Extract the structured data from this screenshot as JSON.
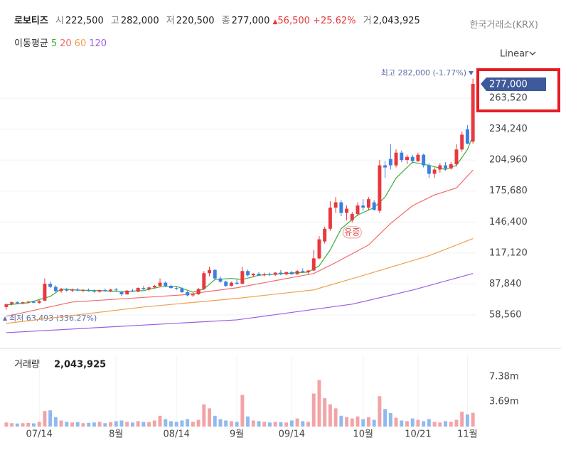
{
  "header": {
    "name": "로보티즈",
    "quotes": [
      {
        "label": "시",
        "value": "222,500"
      },
      {
        "label": "고",
        "value": "282,000"
      },
      {
        "label": "저",
        "value": "220,500"
      },
      {
        "label": "종",
        "value": "277,000"
      },
      {
        "label": "거",
        "value": "2,043,925"
      }
    ],
    "change": "56,500",
    "change_pct": "+25.62%",
    "exchange": "한국거래소(KRX)",
    "ma_label": "이동평균",
    "scale": "Linear"
  },
  "chart_data": {
    "type": "candlestick",
    "grid": true,
    "candles": [
      [
        66000,
        69500,
        63493,
        68500
      ],
      [
        69000,
        71000,
        67500,
        70500
      ],
      [
        70500,
        71500,
        69000,
        69500
      ],
      [
        69500,
        71000,
        68500,
        70500
      ],
      [
        70500,
        72000,
        69500,
        71000
      ],
      [
        71000,
        71500,
        69500,
        70000
      ],
      [
        70000,
        72500,
        69000,
        71500
      ],
      [
        72000,
        93000,
        71500,
        88000
      ],
      [
        88000,
        90000,
        84000,
        85000
      ],
      [
        85000,
        86500,
        80000,
        81000
      ],
      [
        81000,
        84000,
        79500,
        83000
      ],
      [
        83000,
        84000,
        80500,
        81500
      ],
      [
        81500,
        83500,
        80000,
        82500
      ],
      [
        82500,
        84000,
        81000,
        81500
      ],
      [
        81500,
        83000,
        80000,
        82000
      ],
      [
        82000,
        83500,
        80500,
        81000
      ],
      [
        81000,
        82500,
        79500,
        80500
      ],
      [
        80500,
        82500,
        79500,
        82000
      ],
      [
        82000,
        83500,
        80500,
        81000
      ],
      [
        81000,
        83000,
        80000,
        82500
      ],
      [
        82500,
        84000,
        81000,
        82000
      ],
      [
        80000,
        81000,
        76500,
        78000
      ],
      [
        78000,
        82000,
        77500,
        81500
      ],
      [
        81500,
        83000,
        80000,
        80500
      ],
      [
        80500,
        84500,
        80000,
        84000
      ],
      [
        84000,
        86000,
        82000,
        83000
      ],
      [
        83000,
        85000,
        81500,
        84500
      ],
      [
        84500,
        87000,
        83500,
        86000
      ],
      [
        86000,
        93000,
        85000,
        89000
      ],
      [
        89000,
        90500,
        85000,
        86000
      ],
      [
        86000,
        87000,
        83000,
        84000
      ],
      [
        84000,
        85500,
        82000,
        83500
      ],
      [
        83500,
        84500,
        79500,
        80000
      ],
      [
        80000,
        81000,
        76000,
        77000
      ],
      [
        77000,
        79000,
        75500,
        78000
      ],
      [
        78000,
        84000,
        77500,
        83000
      ],
      [
        83000,
        100000,
        82000,
        98000
      ],
      [
        98000,
        104000,
        95000,
        101000
      ],
      [
        101000,
        102000,
        92000,
        93000
      ],
      [
        93000,
        95000,
        89000,
        90000
      ],
      [
        90000,
        91000,
        85000,
        86000
      ],
      [
        86000,
        90000,
        85500,
        89000
      ],
      [
        89000,
        92000,
        87000,
        88000
      ],
      [
        88000,
        104000,
        87500,
        100000
      ],
      [
        100000,
        101500,
        95000,
        96000
      ],
      [
        96000,
        98000,
        94000,
        97500
      ],
      [
        97500,
        99000,
        95500,
        96000
      ],
      [
        96000,
        98500,
        95000,
        97000
      ],
      [
        97000,
        98500,
        95500,
        96500
      ],
      [
        96500,
        99000,
        95500,
        98500
      ],
      [
        98500,
        101000,
        96000,
        97000
      ],
      [
        97000,
        99500,
        96000,
        99000
      ],
      [
        99000,
        100000,
        96500,
        97000
      ],
      [
        97000,
        101000,
        96500,
        100000
      ],
      [
        100000,
        102500,
        98000,
        99000
      ],
      [
        99000,
        101000,
        97000,
        100500
      ],
      [
        100500,
        120000,
        100000,
        112000
      ],
      [
        112000,
        133000,
        111000,
        130000
      ],
      [
        128000,
        142000,
        126000,
        140000
      ],
      [
        140000,
        166000,
        138000,
        160000
      ],
      [
        160000,
        170000,
        155000,
        165000
      ],
      [
        165000,
        167000,
        152000,
        155000
      ],
      [
        155000,
        162000,
        148000,
        159000
      ],
      [
        148000,
        156000,
        146000,
        154000
      ],
      [
        154000,
        165000,
        152000,
        162000
      ],
      [
        162000,
        168000,
        157000,
        160000
      ],
      [
        160000,
        170000,
        158000,
        168000
      ],
      [
        165000,
        167000,
        157000,
        158000
      ],
      [
        157000,
        205000,
        155000,
        200000
      ],
      [
        200000,
        204000,
        188000,
        198000
      ],
      [
        206000,
        220000,
        196000,
        200000
      ],
      [
        200000,
        215000,
        198000,
        212000
      ],
      [
        212000,
        214000,
        203000,
        205000
      ],
      [
        205000,
        210000,
        201000,
        208000
      ],
      [
        208000,
        210000,
        202000,
        204000
      ],
      [
        204000,
        212000,
        203000,
        210000
      ],
      [
        210000,
        211000,
        198000,
        200000
      ],
      [
        200000,
        202000,
        188000,
        192000
      ],
      [
        192000,
        198000,
        188000,
        196000
      ],
      [
        196000,
        202000,
        193000,
        200000
      ],
      [
        200000,
        203000,
        195000,
        197000
      ],
      [
        197000,
        203000,
        196000,
        201000
      ],
      [
        201000,
        220000,
        199000,
        215000
      ],
      [
        215000,
        232000,
        213000,
        229000
      ],
      [
        234000,
        238000,
        220000,
        220500
      ],
      [
        222500,
        282000,
        220500,
        277000
      ]
    ],
    "volume": [
      600000,
      500000,
      450000,
      500000,
      550000,
      480000,
      700000,
      2300000,
      2400000,
      1400000,
      900000,
      700000,
      600000,
      650000,
      500000,
      550000,
      600000,
      700000,
      500000,
      650000,
      800000,
      900000,
      700000,
      600000,
      800000,
      700000,
      650000,
      900000,
      1600000,
      1100000,
      800000,
      700000,
      900000,
      1100000,
      700000,
      1000000,
      3300000,
      2700000,
      1600000,
      1100000,
      900000,
      800000,
      700000,
      4700000,
      1500000,
      900000,
      800000,
      700000,
      600000,
      700000,
      650000,
      600000,
      900000,
      1200000,
      800000,
      700000,
      4900000,
      6900000,
      4200000,
      3300000,
      2700000,
      1600000,
      1400000,
      1200000,
      1500000,
      1100000,
      1400000,
      1000000,
      4500000,
      2600000,
      2000000,
      1300000,
      900000,
      800000,
      1200000,
      1000000,
      800000,
      1100000,
      700000,
      600000,
      800000,
      700000,
      1000000,
      2200000,
      1800000,
      2043925
    ],
    "series": [
      {
        "name": "5",
        "color": "#3aae3a",
        "x": [
          0,
          4,
          8,
          10,
          13,
          17,
          21,
          25,
          28,
          31,
          34,
          36,
          38,
          41,
          43,
          46,
          50,
          55,
          57,
          59,
          61,
          64,
          67,
          69,
          71,
          74,
          77,
          80,
          82,
          84,
          85
        ],
        "values": [
          68000,
          70000,
          76000,
          83000,
          82000,
          81500,
          80500,
          81500,
          85000,
          85500,
          80000,
          83000,
          92000,
          93000,
          92000,
          96000,
          97500,
          99000,
          105000,
          120000,
          140000,
          153000,
          160000,
          170000,
          188000,
          203000,
          200000,
          196000,
          200000,
          215000,
          228000
        ]
      },
      {
        "name": "20",
        "color": "#f06a6a",
        "x": [
          0,
          12,
          32,
          42,
          56,
          60,
          66,
          70,
          74,
          78,
          82,
          85
        ],
        "values": [
          57200,
          70700,
          77400,
          84200,
          97700,
          108000,
          124700,
          145000,
          161800,
          172000,
          178600,
          195500
        ]
      },
      {
        "name": "60",
        "color": "#f0a050",
        "x": [
          0,
          25,
          42,
          56,
          64,
          77,
          85
        ],
        "values": [
          50500,
          66000,
          74100,
          82200,
          94300,
          114500,
          130700
        ]
      },
      {
        "name": "120",
        "color": "#9b5de5",
        "x": [
          0,
          42,
          63,
          74,
          85
        ],
        "values": [
          41700,
          53800,
          68700,
          82000,
          97700
        ]
      }
    ],
    "ylim": [
      33600,
      292500
    ],
    "yticks": [
      {
        "value": 58560,
        "label": "58,560"
      },
      {
        "value": 87840,
        "label": "87,840"
      },
      {
        "value": 117120,
        "label": "117,120"
      },
      {
        "value": 146400,
        "label": "146,400"
      },
      {
        "value": 175680,
        "label": "175,680"
      },
      {
        "value": 204960,
        "label": "204,960"
      },
      {
        "value": 234240,
        "label": "234,240"
      },
      {
        "value": 263520,
        "label": "263,520"
      }
    ],
    "y2lim": [
      0,
      10540000
    ],
    "y2ticks": [
      {
        "value": 3690000,
        "label": "3.69m"
      },
      {
        "value": 7380000,
        "label": "7.38m"
      }
    ],
    "xlim": [
      -0.5,
      85.5
    ],
    "xticks": [
      {
        "value": 6,
        "label": "07/14"
      },
      {
        "value": 20,
        "label": "8월"
      },
      {
        "value": 31,
        "label": "08/14"
      },
      {
        "value": 42,
        "label": "9월"
      },
      {
        "value": 52,
        "label": "09/14"
      },
      {
        "value": 65,
        "label": "10월"
      },
      {
        "value": 75,
        "label": "10/21"
      },
      {
        "value": 84,
        "label": "11월"
      }
    ],
    "max_label": "최고 282,000 (-1.77%)",
    "min_label": "최저 63,493 (336.27%)",
    "price_tag": "277,000",
    "volume_title": "거래량",
    "volume_value": "2,043,925",
    "annotations": [
      {
        "x": 63,
        "text": "유증"
      }
    ]
  }
}
